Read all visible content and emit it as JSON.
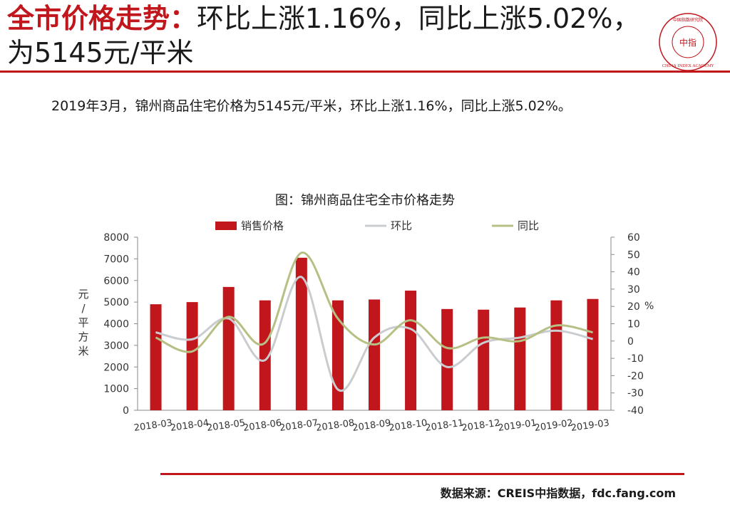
{
  "header": {
    "title_lead": "全市价格走势：",
    "title_rest": "环比上涨1.16%，同比上涨5.02%，为5145元/平米",
    "summary": "2019年3月，锦州商品住宅价格为5145元/平米，环比上涨1.16%，同比上涨5.02%。"
  },
  "logo": {
    "icon": "china-index-academy-seal",
    "text": "CHINA INDEX ACADEMY",
    "center": "中指",
    "top_text": "中国指数研究院",
    "color": "#c0161c"
  },
  "chart_data": {
    "type": "bar",
    "title": "图：锦州商品住宅全市价格走势",
    "categories": [
      "2018-03",
      "2018-04",
      "2018-05",
      "2018-06",
      "2018-07",
      "2018-08",
      "2018-09",
      "2018-10",
      "2018-11",
      "2018-12",
      "2019-01",
      "2019-02",
      "2019-03"
    ],
    "series": [
      {
        "name": "销售价格",
        "type": "bar",
        "axis": "left",
        "color": "#c0161c",
        "values": [
          4900,
          5000,
          5700,
          5080,
          7050,
          5080,
          5120,
          5530,
          4680,
          4650,
          4750,
          5080,
          5145
        ]
      },
      {
        "name": "环比",
        "type": "line",
        "axis": "right",
        "color": "#c9cdd0",
        "values": [
          5,
          1,
          13,
          -11,
          37,
          -28,
          2,
          7,
          -15,
          -1,
          2,
          6,
          1.16
        ]
      },
      {
        "name": "同比",
        "type": "line",
        "axis": "right",
        "color": "#b7c084",
        "values": [
          2,
          -6,
          14,
          -1,
          51,
          13,
          -2,
          12,
          -4,
          2,
          0,
          9,
          5.02
        ]
      }
    ],
    "ylabel": "元/平方米",
    "ylabel_right": "%",
    "ylim": [
      0,
      8000
    ],
    "yticks": [
      0,
      1000,
      2000,
      3000,
      4000,
      5000,
      6000,
      7000,
      8000
    ],
    "ylim_right": [
      -40,
      60
    ],
    "yticks_right": [
      -40,
      -30,
      -20,
      -10,
      0,
      10,
      20,
      30,
      40,
      50,
      60
    ],
    "grid": false,
    "legend": "top"
  },
  "footer": {
    "source": "数据来源：CREIS中指数据，fdc.fang.com"
  }
}
